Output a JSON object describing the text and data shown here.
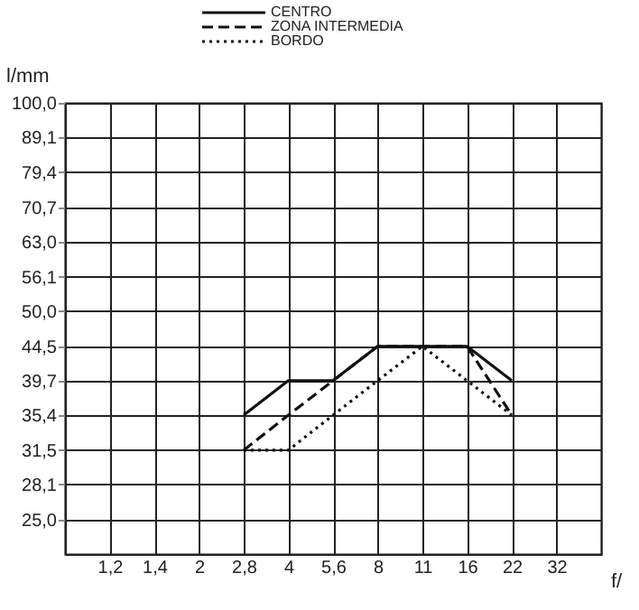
{
  "chart_data": {
    "type": "line",
    "xlabel": "f/",
    "ylabel": "l/mm",
    "categories": [
      "1,2",
      "1,4",
      "2",
      "2,8",
      "4",
      "5,6",
      "8",
      "11",
      "16",
      "22",
      "32"
    ],
    "series": [
      {
        "name": "CENTRO",
        "color": "#111111",
        "line_style": "solid",
        "values": [
          null,
          null,
          null,
          35.4,
          39.7,
          39.7,
          44.5,
          44.5,
          44.5,
          39.7,
          null
        ]
      },
      {
        "name": "ZONA  INTERMEDIA",
        "color": "#111111",
        "line_style": "dashed",
        "values": [
          null,
          null,
          null,
          31.5,
          35.4,
          39.7,
          44.5,
          44.5,
          44.5,
          35.4,
          null
        ]
      },
      {
        "name": "BORDO",
        "color": "#111111",
        "line_style": "dotted",
        "values": [
          null,
          null,
          null,
          31.5,
          31.5,
          35.4,
          39.7,
          44.5,
          39.7,
          35.4,
          null
        ]
      }
    ],
    "log": "y",
    "ylim": [
      22.3,
      100
    ],
    "yticks": [
      {
        "value": 100,
        "label": "100,0"
      },
      {
        "value": 89.1,
        "label": "89,1"
      },
      {
        "value": 79.4,
        "label": "79,4"
      },
      {
        "value": 70.7,
        "label": "70,7"
      },
      {
        "value": 63,
        "label": "63,0"
      },
      {
        "value": 56.1,
        "label": "56,1"
      },
      {
        "value": 50,
        "label": "50,0"
      },
      {
        "value": 44.5,
        "label": "44,5"
      },
      {
        "value": 39.7,
        "label": "39,7"
      },
      {
        "value": 35.4,
        "label": "35,4"
      },
      {
        "value": 31.5,
        "label": "31,5"
      },
      {
        "value": 28.1,
        "label": "28,1"
      },
      {
        "value": 25,
        "label": "25,0"
      }
    ],
    "grid": true,
    "legend": "top",
    "marker": "none"
  }
}
